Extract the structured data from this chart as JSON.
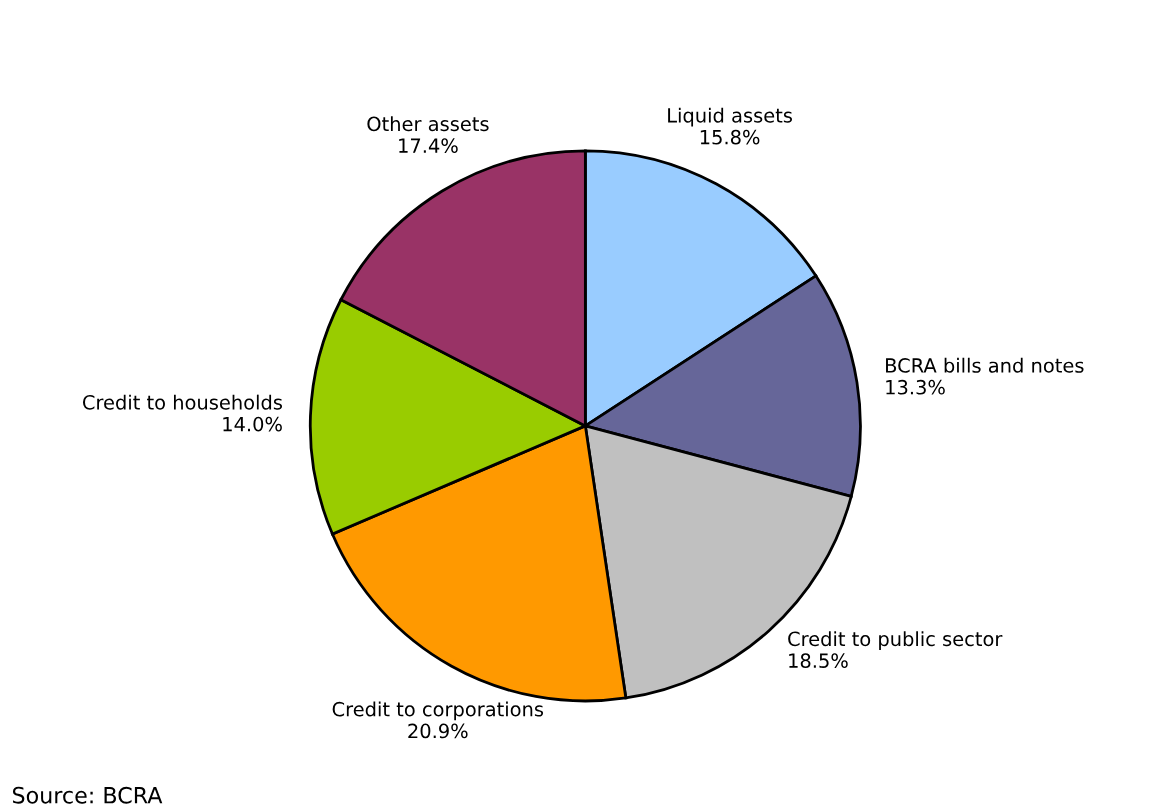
{
  "chart_data": {
    "type": "pie",
    "categories": [
      "Liquid assets",
      "BCRA bills and notes",
      "Credit to public sector",
      "Credit to corporations",
      "Credit to households",
      "Other assets"
    ],
    "values": [
      15.8,
      13.3,
      18.5,
      20.9,
      14.0,
      17.4
    ],
    "value_labels": [
      "15.8%",
      "13.3%",
      "18.5%",
      "20.9%",
      "14.0%",
      "17.4%"
    ],
    "colors": [
      "#99ccff",
      "#666699",
      "#c0c0c0",
      "#ff9900",
      "#99cc00",
      "#993366"
    ],
    "annotations": [
      "Source: BCRA"
    ],
    "legend": false
  }
}
